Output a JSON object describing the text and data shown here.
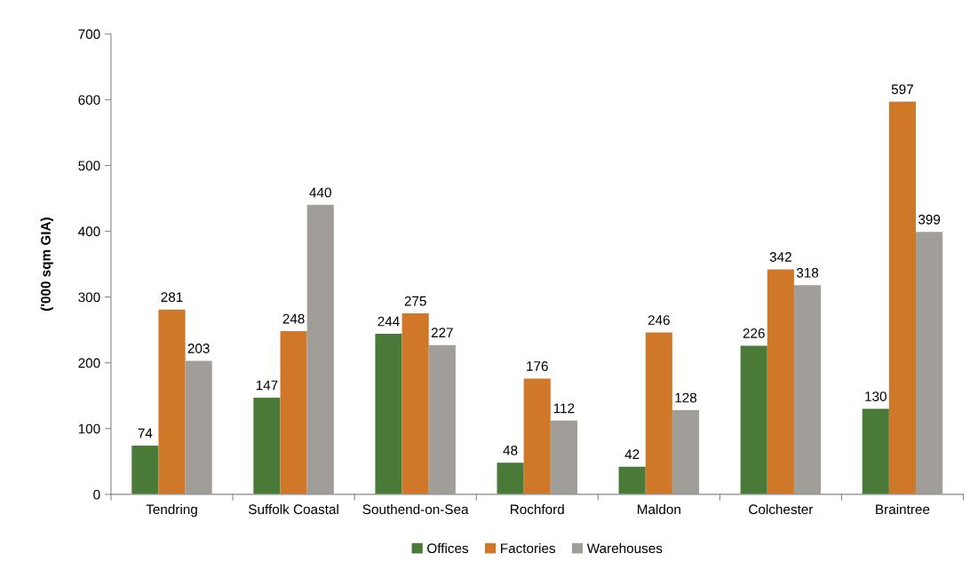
{
  "chart_data": {
    "type": "bar",
    "ylabel": "('000 sqm GIA)",
    "categories": [
      "Tendring",
      "Suffolk Coastal",
      "Southend-on-Sea",
      "Rochford",
      "Maldon",
      "Colchester",
      "Braintree"
    ],
    "series": [
      {
        "name": "Offices",
        "color": "#4a7a38",
        "values": [
          74,
          147,
          244,
          48,
          42,
          226,
          130
        ]
      },
      {
        "name": "Factories",
        "color": "#d0782a",
        "values": [
          281,
          248,
          275,
          176,
          246,
          342,
          597
        ]
      },
      {
        "name": "Warehouses",
        "color": "#a19d98",
        "values": [
          203,
          440,
          227,
          112,
          128,
          318,
          399
        ]
      }
    ],
    "ylim": [
      0,
      700
    ],
    "yticks": [
      0,
      100,
      200,
      300,
      400,
      500,
      600,
      700
    ],
    "data_labels": true,
    "grid": false,
    "legend": "bottom"
  }
}
